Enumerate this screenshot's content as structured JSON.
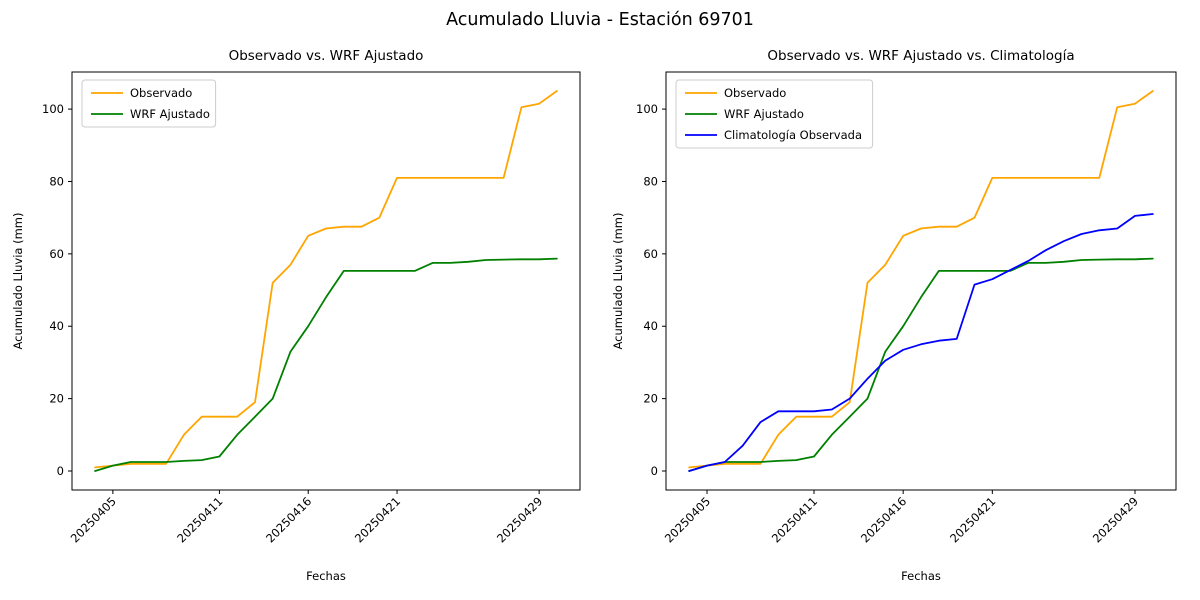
{
  "figure": {
    "title": "Acumulado Lluvia - Estación 69701"
  },
  "chart_data": [
    {
      "type": "line",
      "title": "Observado vs. WRF Ajustado",
      "xlabel": "Fechas",
      "ylabel": "Acumulado Lluvia (mm)",
      "legend_position": "upper left",
      "grid": false,
      "ylim": [
        -5.25,
        110.25
      ],
      "y_ticks": [
        0,
        20,
        40,
        60,
        80,
        100
      ],
      "x_ticks": [
        "20250405",
        "20250411",
        "20250416",
        "20250421",
        "20250429"
      ],
      "x": [
        "20250404",
        "20250405",
        "20250406",
        "20250407",
        "20250408",
        "20250409",
        "20250410",
        "20250411",
        "20250412",
        "20250413",
        "20250414",
        "20250415",
        "20250416",
        "20250417",
        "20250418",
        "20250419",
        "20250420",
        "20250421",
        "20250422",
        "20250423",
        "20250424",
        "20250425",
        "20250426",
        "20250427",
        "20250428",
        "20250429",
        "20250430"
      ],
      "series": [
        {
          "name": "Observado",
          "color": "#ffa500",
          "values": [
            1,
            1.5,
            2,
            2,
            2,
            10,
            15,
            15,
            15,
            19,
            52,
            57,
            65,
            67,
            67.5,
            67.5,
            70,
            81,
            81,
            81,
            81,
            81,
            81,
            81,
            100.5,
            101.5,
            105
          ]
        },
        {
          "name": "WRF Ajustado",
          "color": "#008000",
          "values": [
            0,
            1.5,
            2.5,
            2.5,
            2.5,
            2.8,
            3,
            4,
            10,
            15,
            20,
            33,
            40,
            48,
            55.3,
            55.3,
            55.3,
            55.3,
            55.3,
            57.5,
            57.5,
            57.8,
            58.3,
            58.4,
            58.5,
            58.5,
            58.7
          ]
        }
      ]
    },
    {
      "type": "line",
      "title": "Observado vs. WRF Ajustado vs. Climatología",
      "xlabel": "Fechas",
      "ylabel": "Acumulado Lluvia (mm)",
      "legend_position": "upper left",
      "grid": false,
      "ylim": [
        -5.25,
        110.25
      ],
      "y_ticks": [
        0,
        20,
        40,
        60,
        80,
        100
      ],
      "x_ticks": [
        "20250405",
        "20250411",
        "20250416",
        "20250421",
        "20250429"
      ],
      "x": [
        "20250404",
        "20250405",
        "20250406",
        "20250407",
        "20250408",
        "20250409",
        "20250410",
        "20250411",
        "20250412",
        "20250413",
        "20250414",
        "20250415",
        "20250416",
        "20250417",
        "20250418",
        "20250419",
        "20250420",
        "20250421",
        "20250422",
        "20250423",
        "20250424",
        "20250425",
        "20250426",
        "20250427",
        "20250428",
        "20250429",
        "20250430"
      ],
      "series": [
        {
          "name": "Observado",
          "color": "#ffa500",
          "values": [
            1,
            1.5,
            2,
            2,
            2,
            10,
            15,
            15,
            15,
            19,
            52,
            57,
            65,
            67,
            67.5,
            67.5,
            70,
            81,
            81,
            81,
            81,
            81,
            81,
            81,
            100.5,
            101.5,
            105
          ]
        },
        {
          "name": "WRF Ajustado",
          "color": "#008000",
          "values": [
            0,
            1.5,
            2.5,
            2.5,
            2.5,
            2.8,
            3,
            4,
            10,
            15,
            20,
            33,
            40,
            48,
            55.3,
            55.3,
            55.3,
            55.3,
            55.3,
            57.5,
            57.5,
            57.8,
            58.3,
            58.4,
            58.5,
            58.5,
            58.7
          ]
        },
        {
          "name": "Climatología Observada",
          "color": "#0000ff",
          "values": [
            0,
            1.5,
            2.5,
            7,
            13.5,
            16.5,
            16.5,
            16.5,
            17,
            20,
            25.5,
            30.5,
            33.5,
            35,
            36,
            36.5,
            51.5,
            53,
            55.5,
            58,
            61,
            63.5,
            65.5,
            66.5,
            67,
            70.5,
            71
          ]
        }
      ]
    }
  ]
}
